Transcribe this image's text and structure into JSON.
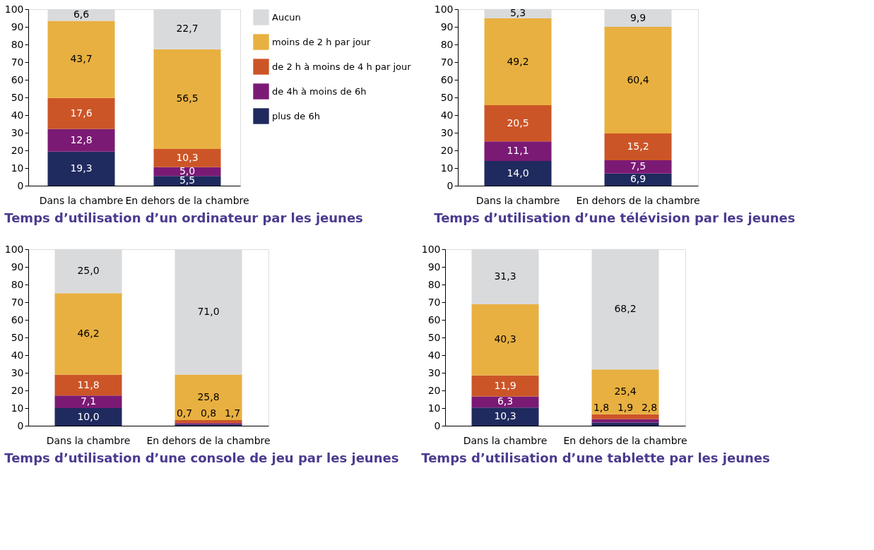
{
  "chart_data": [
    {
      "type": "bar",
      "stacked": true,
      "title": "Temps d’utilisation d’un ordinateur par les jeunes",
      "categories": [
        "Dans la chambre",
        "En dehors de la chambre"
      ],
      "ylim": [
        0,
        100
      ],
      "yticks": [
        0,
        10,
        20,
        30,
        40,
        50,
        60,
        70,
        80,
        90,
        100
      ],
      "legend": "right",
      "series": [
        {
          "name": "plus de 6h",
          "color": "#1f2a5e",
          "values": [
            19.3,
            5.5
          ],
          "value_labels": [
            "19,3",
            "5,5"
          ]
        },
        {
          "name": "de 4h à moins de 6h",
          "color": "#7b1a75",
          "values": [
            12.8,
            5.0
          ],
          "value_labels": [
            "12,8",
            "5,0"
          ]
        },
        {
          "name": "de 2 h à moins de 4 h par jour",
          "color": "#cc5527",
          "values": [
            17.6,
            10.3
          ],
          "value_labels": [
            "17,6",
            "10,3"
          ]
        },
        {
          "name": "moins de 2 h par jour",
          "color": "#e8b040",
          "values": [
            43.7,
            56.5
          ],
          "value_labels": [
            "43,7",
            "56,5"
          ]
        },
        {
          "name": "Aucun",
          "color": "#d9dadc",
          "values": [
            6.6,
            22.7
          ],
          "value_labels": [
            "6,6",
            "22,7"
          ]
        }
      ]
    },
    {
      "type": "bar",
      "stacked": true,
      "title": "Temps d’utilisation d’une télévision par les jeunes",
      "categories": [
        "Dans la chambre",
        "En dehors de la chambre"
      ],
      "ylim": [
        0,
        100
      ],
      "yticks": [
        0,
        10,
        20,
        30,
        40,
        50,
        60,
        70,
        80,
        90,
        100
      ],
      "series": [
        {
          "color": "#1f2a5e",
          "values": [
            14.0,
            6.9
          ],
          "value_labels": [
            "14,0",
            "6,9"
          ]
        },
        {
          "color": "#7b1a75",
          "values": [
            11.1,
            7.5
          ],
          "value_labels": [
            "11,1",
            "7,5"
          ]
        },
        {
          "color": "#cc5527",
          "values": [
            20.5,
            15.2
          ],
          "value_labels": [
            "20,5",
            "15,2"
          ]
        },
        {
          "color": "#e8b040",
          "values": [
            49.2,
            60.4
          ],
          "value_labels": [
            "49,2",
            "60,4"
          ]
        },
        {
          "color": "#d9dadc",
          "values": [
            5.3,
            9.9
          ],
          "value_labels": [
            "5,3",
            "9,9"
          ]
        }
      ]
    },
    {
      "type": "bar",
      "stacked": true,
      "title": "Temps d’utilisation d’une console de jeu par les jeunes",
      "categories": [
        "Dans la chambre",
        "En dehors de la chambre"
      ],
      "ylim": [
        0,
        100
      ],
      "yticks": [
        0,
        10,
        20,
        30,
        40,
        50,
        60,
        70,
        80,
        90,
        100
      ],
      "series": [
        {
          "color": "#1f2a5e",
          "values": [
            10.0,
            0.7
          ],
          "value_labels": [
            "10,0",
            "0,7"
          ]
        },
        {
          "color": "#7b1a75",
          "values": [
            7.1,
            0.8
          ],
          "value_labels": [
            "7,1",
            "0,8"
          ]
        },
        {
          "color": "#cc5527",
          "values": [
            11.8,
            1.7
          ],
          "value_labels": [
            "11,8",
            "1,7"
          ]
        },
        {
          "color": "#e8b040",
          "values": [
            46.2,
            25.8
          ],
          "value_labels": [
            "46,2",
            "25,8"
          ]
        },
        {
          "color": "#d9dadc",
          "values": [
            25.0,
            71.0
          ],
          "value_labels": [
            "25,0",
            "71,0"
          ]
        }
      ]
    },
    {
      "type": "bar",
      "stacked": true,
      "title": "Temps d’utilisation d’une tablette par les jeunes",
      "categories": [
        "Dans la chambre",
        "En dehors de la chambre"
      ],
      "ylim": [
        0,
        100
      ],
      "yticks": [
        0,
        10,
        20,
        30,
        40,
        50,
        60,
        70,
        80,
        90,
        100
      ],
      "series": [
        {
          "color": "#1f2a5e",
          "values": [
            10.3,
            1.8
          ],
          "value_labels": [
            "10,3",
            "1,8"
          ]
        },
        {
          "color": "#7b1a75",
          "values": [
            6.3,
            1.9
          ],
          "value_labels": [
            "6,3",
            "1,9"
          ]
        },
        {
          "color": "#cc5527",
          "values": [
            11.9,
            2.8
          ],
          "value_labels": [
            "11,9",
            "2,8"
          ]
        },
        {
          "color": "#e8b040",
          "values": [
            40.3,
            25.4
          ],
          "value_labels": [
            "40,3",
            "25,4"
          ]
        },
        {
          "color": "#d9dadc",
          "values": [
            31.3,
            68.2
          ],
          "value_labels": [
            "31,3",
            "68,2"
          ]
        }
      ]
    }
  ]
}
